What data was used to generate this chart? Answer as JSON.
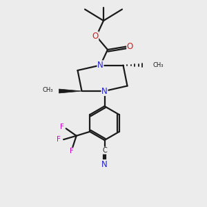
{
  "bg_color": "#ececec",
  "bond_color": "#1a1a1a",
  "N_color": "#2020cc",
  "O_color": "#cc2020",
  "F_color": "#cc00cc",
  "figsize": [
    3.0,
    3.0
  ],
  "dpi": 100,
  "xlim": [
    0,
    10
  ],
  "ylim": [
    0,
    10
  ]
}
